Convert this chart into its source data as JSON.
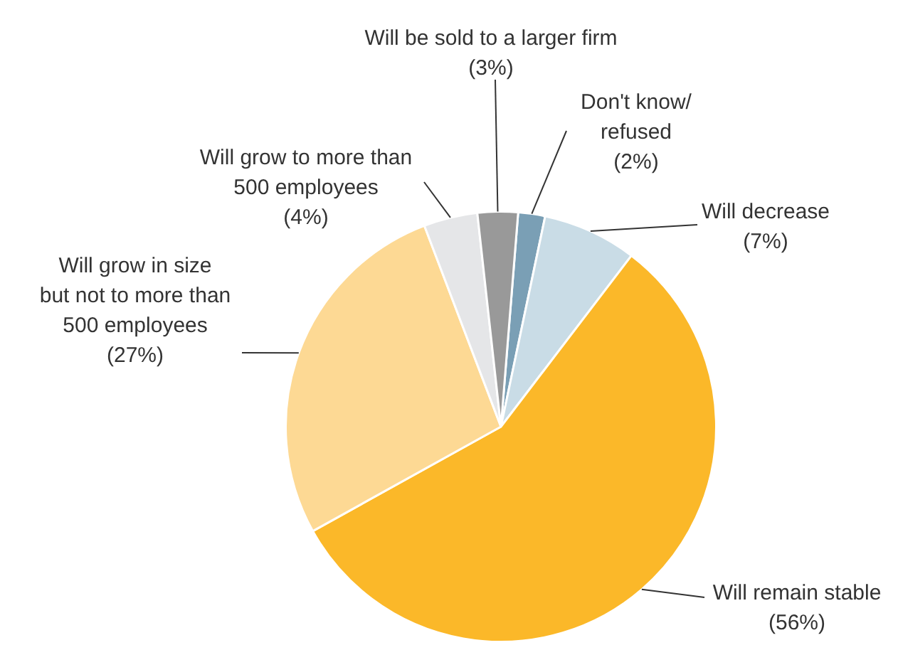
{
  "chart_data": {
    "type": "pie",
    "categories": [
      "Don't know/\nrefused",
      "Will decrease",
      "Will remain stable",
      "Will grow in size\nbut not to more than\n500 employees",
      "Will grow to more than\n500 employees",
      "Will be sold to a larger firm"
    ],
    "values": [
      2,
      7,
      56,
      27,
      4,
      3
    ],
    "colors": [
      "#7a9fb5",
      "#c9dce6",
      "#fbb829",
      "#fdd994",
      "#e5e6e8",
      "#999999"
    ],
    "value_labels": [
      "(2%)",
      "(7%)",
      "(56%)",
      "(27%)",
      "(4%)",
      "(3%)"
    ],
    "legend": false
  }
}
